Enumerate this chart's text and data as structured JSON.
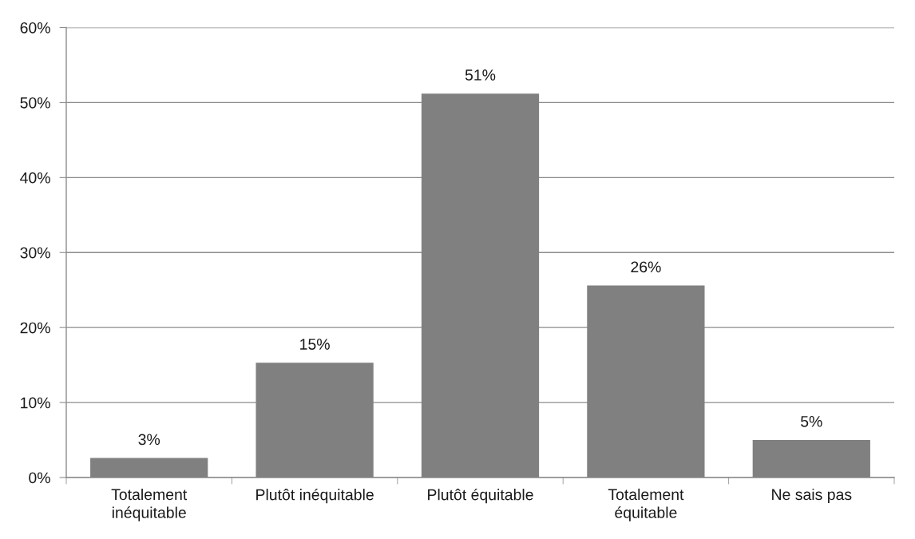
{
  "chart_data": {
    "type": "bar",
    "categories": [
      "Totalement\ninéquitable",
      "Plutôt inéquitable",
      "Plutôt équitable",
      "Totalement\néquitable",
      "Ne sais pas"
    ],
    "values": [
      2.6,
      15.3,
      51.2,
      25.6,
      5.0
    ],
    "value_labels": [
      "3%",
      "15%",
      "51%",
      "26%",
      "5%"
    ],
    "color": "#808080",
    "ylim": [
      0,
      60
    ],
    "yticks": [
      {
        "value": 0,
        "label": "0%"
      },
      {
        "value": 10,
        "label": "10%"
      },
      {
        "value": 20,
        "label": "20%"
      },
      {
        "value": 30,
        "label": "30%"
      },
      {
        "value": 40,
        "label": "40%"
      },
      {
        "value": 50,
        "label": "50%"
      },
      {
        "value": 60,
        "label": "60%"
      }
    ],
    "grid": "y"
  }
}
